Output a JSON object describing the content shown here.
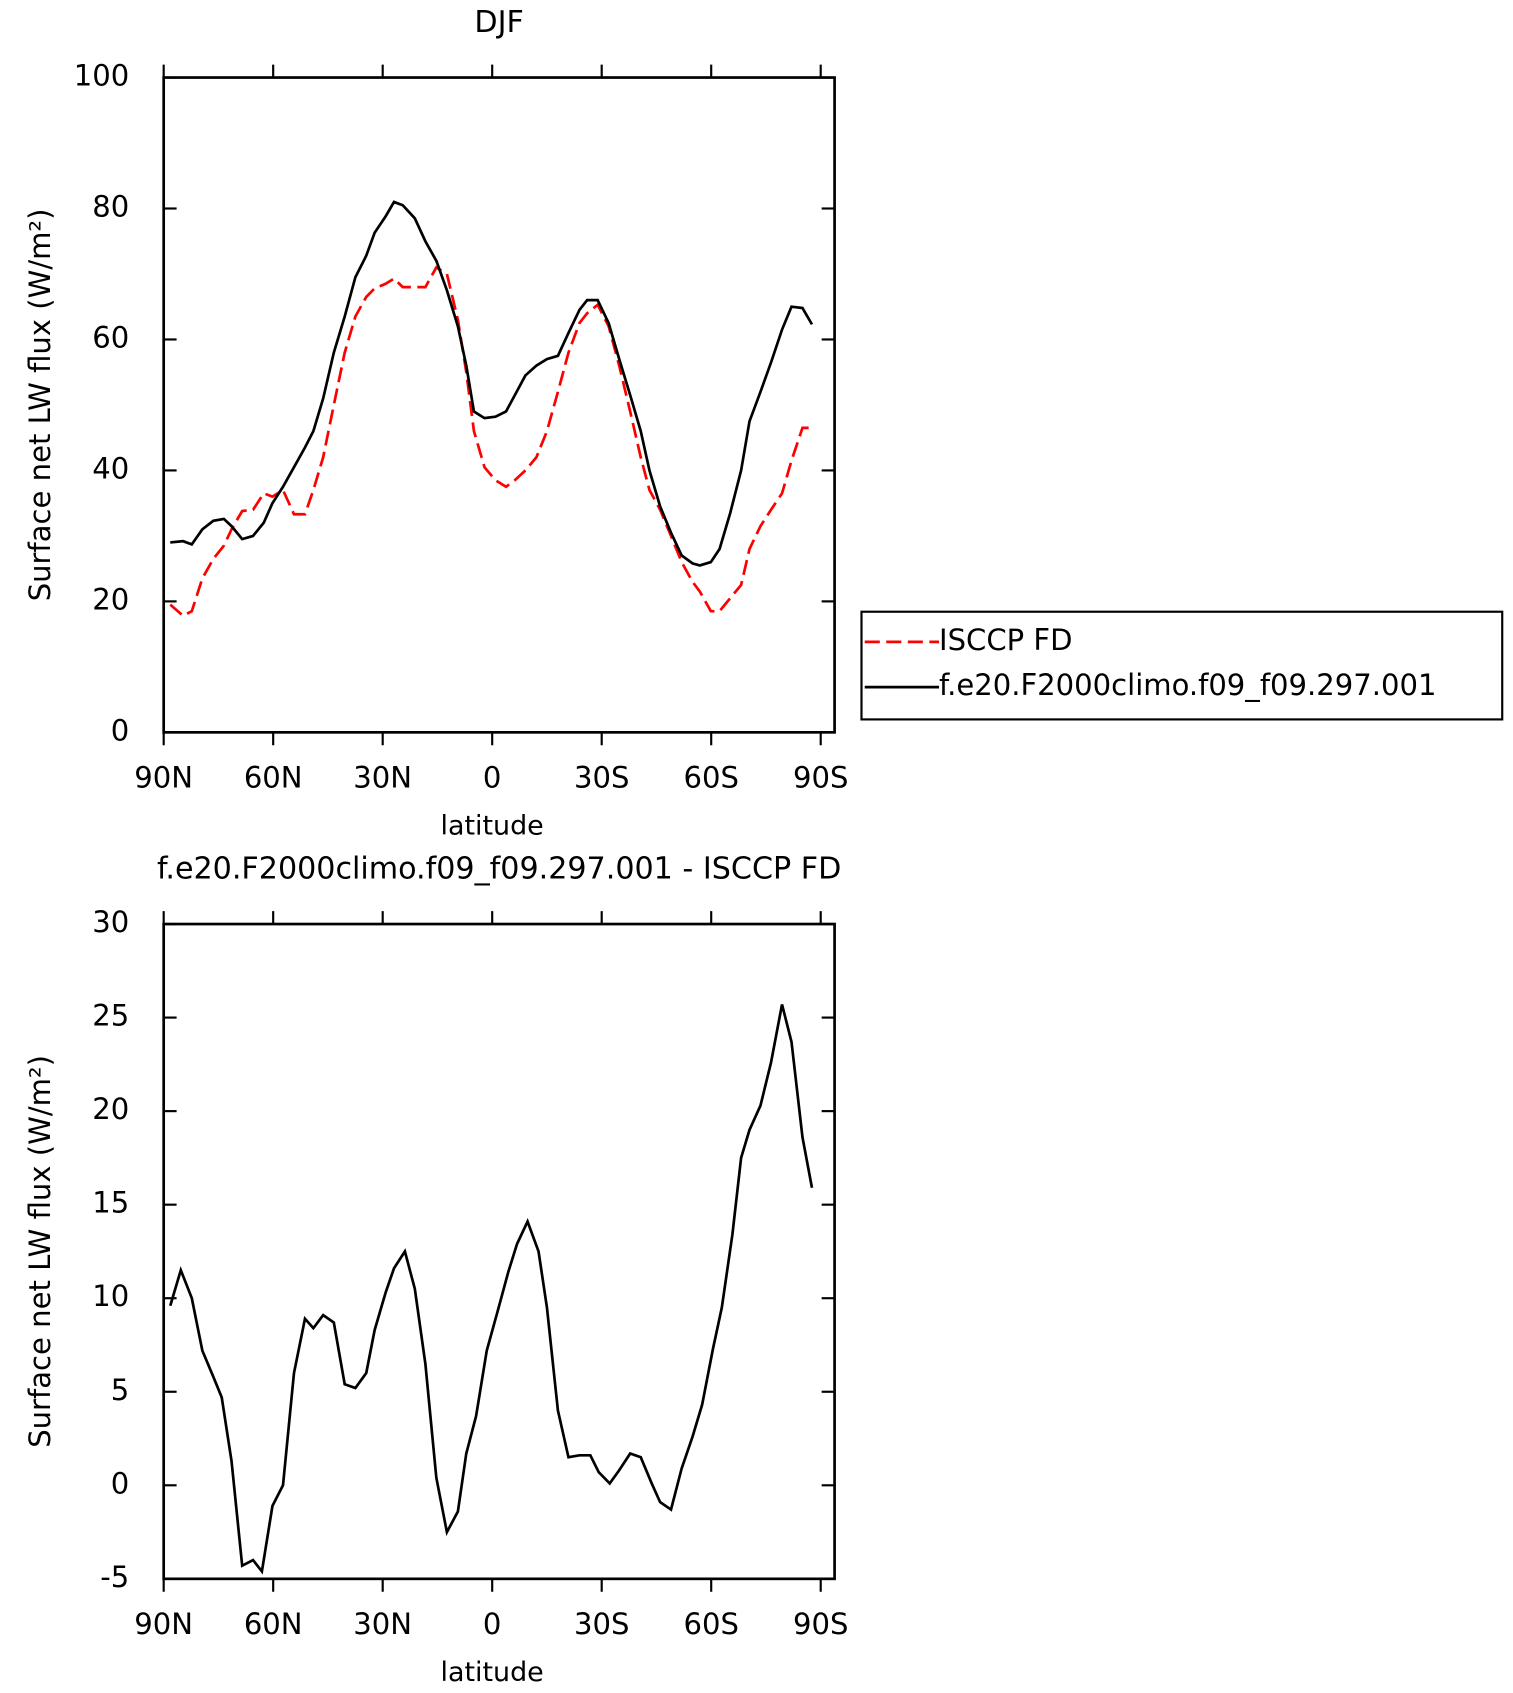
{
  "chart_data": [
    {
      "type": "line",
      "title": "DJF",
      "xlabel": "latitude",
      "ylabel": "Surface net LW flux (W/m²)",
      "xlim": [
        90,
        -93.8
      ],
      "xticks": [
        {
          "value": 90,
          "label": "90N"
        },
        {
          "value": 60,
          "label": "60N"
        },
        {
          "value": 30,
          "label": "30N"
        },
        0,
        {
          "value": -30,
          "label": "30S"
        },
        {
          "value": -60,
          "label": "60S"
        },
        {
          "value": -90,
          "label": "90S"
        }
      ],
      "ylim": [
        0,
        100
      ],
      "yticks": [
        0,
        20,
        40,
        60,
        80,
        100
      ],
      "legend": "right",
      "x": [
        88.2,
        84.7,
        82.3,
        79.4,
        76.4,
        73.5,
        71.4,
        68.5,
        65.5,
        62.6,
        60.2,
        57.3,
        54.3,
        51.3,
        49.0,
        46.3,
        43.4,
        40.4,
        37.5,
        34.5,
        32.2,
        29.2,
        26.9,
        24.5,
        21.2,
        18.3,
        15.3,
        12.4,
        9.4,
        7.1,
        5.0,
        2.1,
        -0.9,
        -3.8,
        -6.2,
        -9.1,
        -12.1,
        -15.0,
        -18.0,
        -20.9,
        -23.9,
        -26.0,
        -28.9,
        -31.9,
        -34.8,
        -37.8,
        -40.7,
        -43.1,
        -46.0,
        -49.0,
        -51.9,
        -54.9,
        -56.9,
        -59.9,
        -62.3,
        -65.2,
        -68.2,
        -70.5,
        -73.5,
        -76.4,
        -79.4,
        -82.0,
        -85.0,
        -87.6
      ],
      "series": [
        {
          "name": "ISCCP FD",
          "color": "#ff0000",
          "dash": true,
          "values": [
            19.5,
            17.8,
            18.5,
            23.5,
            26.5,
            28.5,
            31,
            33.8,
            34,
            36.5,
            36,
            37,
            33.3,
            33.3,
            37,
            42,
            50,
            58,
            63.5,
            66.5,
            67.8,
            68.5,
            69.3,
            68,
            68,
            68,
            71,
            70,
            63,
            55,
            46,
            40.5,
            38.5,
            37.5,
            38.5,
            40,
            42,
            46,
            52,
            58,
            62.5,
            64,
            65.3,
            62,
            56,
            49,
            42,
            37,
            34,
            30,
            26,
            23,
            21.5,
            18.5,
            18.5,
            20.5,
            22.5,
            28,
            31.5,
            34,
            36.5,
            41.5,
            46.5,
            46.5
          ]
        },
        {
          "name": "f.e20.F2000climo.f09_f09.297.001",
          "color": "#000000",
          "dash": false,
          "values": [
            29,
            29.2,
            28.7,
            31,
            32.3,
            32.6,
            31.5,
            29.5,
            30,
            32,
            35,
            37.5,
            40.5,
            43.5,
            46,
            51,
            58,
            63.5,
            69.5,
            72.8,
            76.3,
            78.8,
            81,
            80.5,
            78.5,
            75,
            72,
            67.5,
            62,
            56,
            49,
            48,
            48.2,
            49,
            51.5,
            54.5,
            56,
            57,
            57.5,
            61,
            64.5,
            66,
            66,
            62.5,
            57,
            51.5,
            46,
            40,
            34.5,
            30.5,
            27,
            25.8,
            25.5,
            26,
            28,
            33.5,
            40,
            47.5,
            52,
            56.5,
            61.5,
            65,
            64.8,
            62.3
          ]
        }
      ]
    },
    {
      "type": "line",
      "title": "f.e20.F2000climo.f09_f09.297.001 - ISCCP FD",
      "xlabel": "latitude",
      "ylabel": "Surface net LW flux (W/m²)",
      "xlim": [
        90,
        -93.8
      ],
      "xticks": [
        {
          "value": 90,
          "label": "90N"
        },
        {
          "value": 60,
          "label": "60N"
        },
        {
          "value": 30,
          "label": "30N"
        },
        0,
        {
          "value": -30,
          "label": "30S"
        },
        {
          "value": -60,
          "label": "60S"
        },
        {
          "value": -90,
          "label": "90S"
        }
      ],
      "ylim": [
        -5,
        30
      ],
      "yticks": [
        -5,
        0,
        5,
        10,
        15,
        20,
        25,
        30
      ],
      "x": [
        88.2,
        85.3,
        82.3,
        79.4,
        76.4,
        74.1,
        71.4,
        68.5,
        65.5,
        63.1,
        60.2,
        57.3,
        54.3,
        51.3,
        49.0,
        46.3,
        43.4,
        40.4,
        37.5,
        34.5,
        32.2,
        29.2,
        26.9,
        23.9,
        21.2,
        18.3,
        15.3,
        12.4,
        9.4,
        7.1,
        4.4,
        1.5,
        -1.5,
        -4.4,
        -6.8,
        -9.7,
        -12.7,
        -15.0,
        -18.0,
        -20.9,
        -23.9,
        -26.9,
        -29.2,
        -32.2,
        -34.8,
        -37.8,
        -40.7,
        -43.7,
        -46.0,
        -49.0,
        -51.9,
        -54.9,
        -57.5,
        -60.5,
        -62.9,
        -65.8,
        -68.2,
        -70.5,
        -73.5,
        -76.4,
        -79.4,
        -82.0,
        -85.0,
        -87.6
      ],
      "series": [
        {
          "color": "#000000",
          "dash": false,
          "values": [
            9.6,
            11.5,
            10,
            7.2,
            5.8,
            4.7,
            1.3,
            -4.3,
            -4,
            -4.6,
            -1.1,
            0,
            6,
            8.9,
            8.4,
            9.1,
            8.7,
            5.4,
            5.2,
            6,
            8.3,
            10.3,
            11.6,
            12.5,
            10.5,
            6.5,
            0.4,
            -2.5,
            -1.4,
            1.7,
            3.7,
            7.2,
            9.3,
            11.4,
            12.9,
            14.1,
            12.5,
            9.5,
            4,
            1.5,
            1.6,
            1.6,
            0.7,
            0.1,
            0.8,
            1.7,
            1.5,
            0.1,
            -0.9,
            -1.3,
            0.9,
            2.6,
            4.3,
            7.3,
            9.5,
            13.4,
            17.5,
            19,
            20.3,
            22.6,
            25.7,
            23.7,
            18.6,
            15.9
          ]
        }
      ]
    }
  ]
}
